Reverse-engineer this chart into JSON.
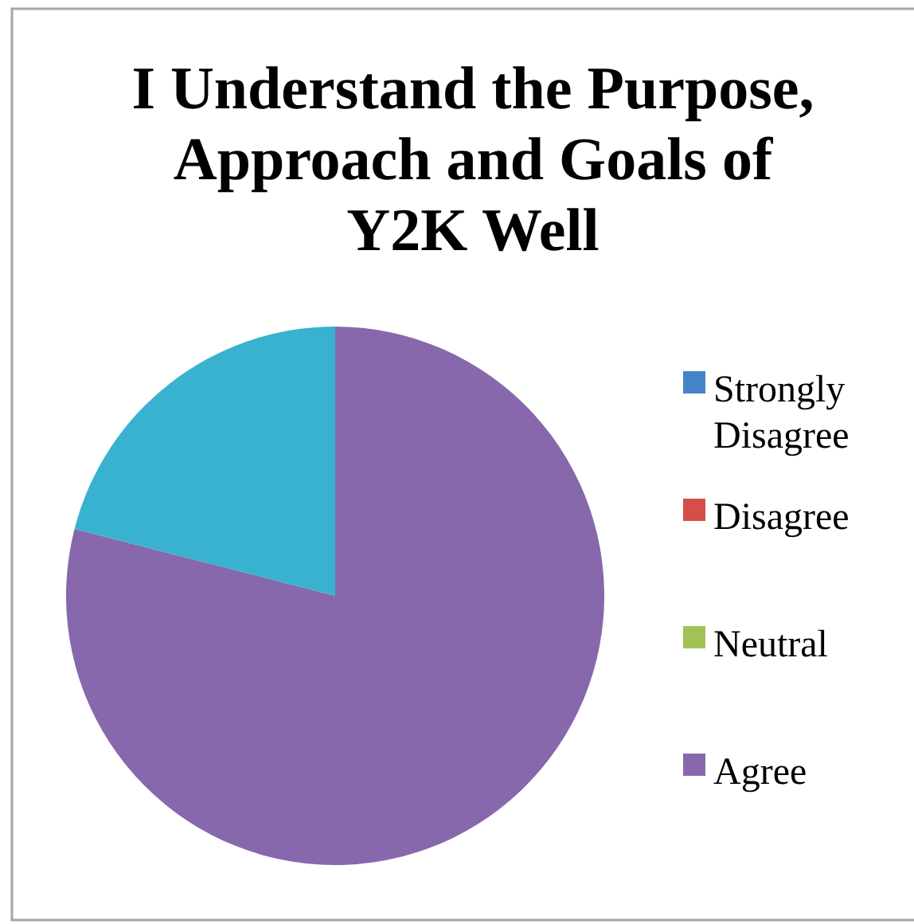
{
  "chart_data": {
    "type": "pie",
    "title": "I Understand the Purpose, Approach and Goals of Y2K Well",
    "categories": [
      "Strongly Disagree",
      "Disagree",
      "Neutral",
      "Agree",
      null
    ],
    "values": [
      0,
      0,
      0,
      79,
      21
    ],
    "colors": [
      "#4584c8",
      "#d44f47",
      "#a2c258",
      "#8768ac",
      "#38b2cf"
    ],
    "legend": "right"
  }
}
